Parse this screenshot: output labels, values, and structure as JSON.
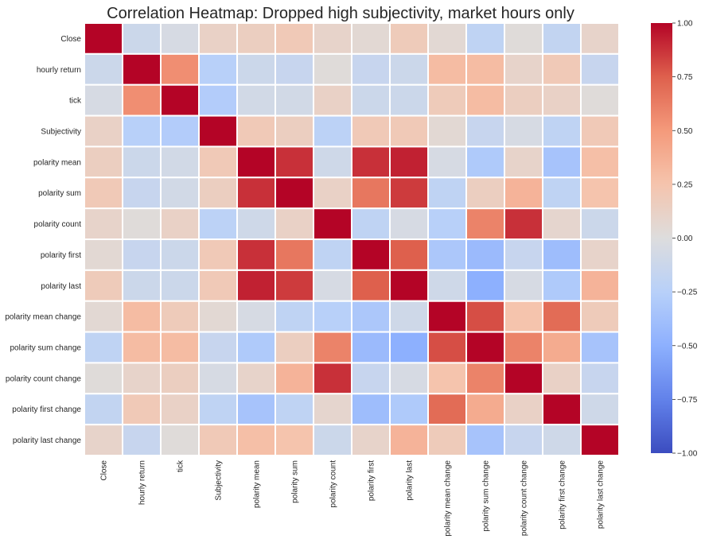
{
  "chart_data": {
    "type": "heatmap",
    "title": "Correlation Heatmap: Dropped high subjectivity, market hours only",
    "xlabel": "",
    "ylabel": "",
    "row_labels": [
      "Close",
      "hourly return",
      "tick",
      "Subjectivity",
      "polarity mean",
      "polarity sum",
      "polarity count",
      "polarity first",
      "polarity last",
      "polarity mean change",
      "polarity sum change",
      "polarity count change",
      "polarity first change",
      "polarity last change"
    ],
    "col_labels": [
      "Close",
      "hourly return",
      "tick",
      "Subjectivity",
      "polarity mean",
      "polarity sum",
      "polarity count",
      "polarity first",
      "polarity last",
      "polarity mean change",
      "polarity sum change",
      "polarity count change",
      "polarity first change",
      "polarity last change"
    ],
    "values": [
      [
        1.0,
        -0.12,
        -0.05,
        0.12,
        0.15,
        0.2,
        0.1,
        0.05,
        0.18,
        0.05,
        -0.2,
        0.02,
        -0.18,
        0.1
      ],
      [
        -0.12,
        1.0,
        0.55,
        -0.25,
        -0.12,
        -0.15,
        0.02,
        -0.15,
        -0.12,
        0.3,
        0.3,
        0.1,
        0.2,
        -0.15
      ],
      [
        -0.05,
        0.55,
        1.0,
        -0.28,
        -0.08,
        -0.08,
        0.12,
        -0.12,
        -0.12,
        0.18,
        0.3,
        0.15,
        0.12,
        0.02
      ],
      [
        0.12,
        -0.25,
        -0.28,
        1.0,
        0.2,
        0.15,
        -0.22,
        0.2,
        0.2,
        0.05,
        -0.15,
        -0.05,
        -0.2,
        0.2
      ],
      [
        0.15,
        -0.12,
        -0.08,
        0.2,
        1.0,
        0.88,
        -0.1,
        0.88,
        0.92,
        -0.05,
        -0.3,
        0.1,
        -0.35,
        0.28
      ],
      [
        0.2,
        -0.15,
        -0.08,
        0.15,
        0.88,
        1.0,
        0.12,
        0.65,
        0.85,
        -0.2,
        0.15,
        0.35,
        -0.2,
        0.25
      ],
      [
        0.1,
        0.02,
        0.12,
        -0.22,
        -0.1,
        0.12,
        1.0,
        -0.2,
        -0.05,
        -0.25,
        0.6,
        0.88,
        0.08,
        -0.12
      ],
      [
        0.05,
        -0.15,
        -0.12,
        0.2,
        0.88,
        0.65,
        -0.2,
        1.0,
        0.75,
        -0.32,
        -0.42,
        -0.15,
        -0.4,
        0.1
      ],
      [
        0.18,
        -0.12,
        -0.12,
        0.2,
        0.92,
        0.85,
        -0.05,
        0.75,
        1.0,
        -0.1,
        -0.5,
        -0.05,
        -0.3,
        0.35
      ],
      [
        0.05,
        0.3,
        0.18,
        0.05,
        -0.05,
        -0.2,
        -0.25,
        -0.32,
        -0.1,
        1.0,
        0.8,
        0.25,
        0.7,
        0.18
      ],
      [
        -0.2,
        0.3,
        0.3,
        -0.15,
        -0.3,
        0.15,
        0.6,
        -0.42,
        -0.5,
        0.8,
        1.0,
        0.6,
        0.4,
        -0.35
      ],
      [
        0.02,
        0.1,
        0.15,
        -0.05,
        0.1,
        0.35,
        0.88,
        -0.15,
        -0.05,
        0.25,
        0.6,
        1.0,
        0.12,
        -0.15
      ],
      [
        -0.18,
        0.2,
        0.12,
        -0.2,
        -0.35,
        -0.2,
        0.08,
        -0.4,
        -0.3,
        0.7,
        0.4,
        0.12,
        1.0,
        -0.1
      ],
      [
        0.1,
        -0.15,
        0.02,
        0.2,
        0.28,
        0.25,
        -0.12,
        0.1,
        0.35,
        0.18,
        -0.35,
        -0.15,
        -0.1,
        1.0
      ]
    ],
    "vmin": -1.0,
    "vmax": 1.0,
    "colormap": "coolwarm",
    "colorbar_ticks": [
      "1.00",
      "0.75",
      "0.50",
      "0.25",
      "0.00",
      "−0.25",
      "−0.50",
      "−0.75",
      "−1.00"
    ],
    "colorbar_tick_values": [
      1.0,
      0.75,
      0.5,
      0.25,
      0.0,
      -0.25,
      -0.5,
      -0.75,
      -1.0
    ],
    "cell_border_color": "#ffffff",
    "grid": false
  }
}
